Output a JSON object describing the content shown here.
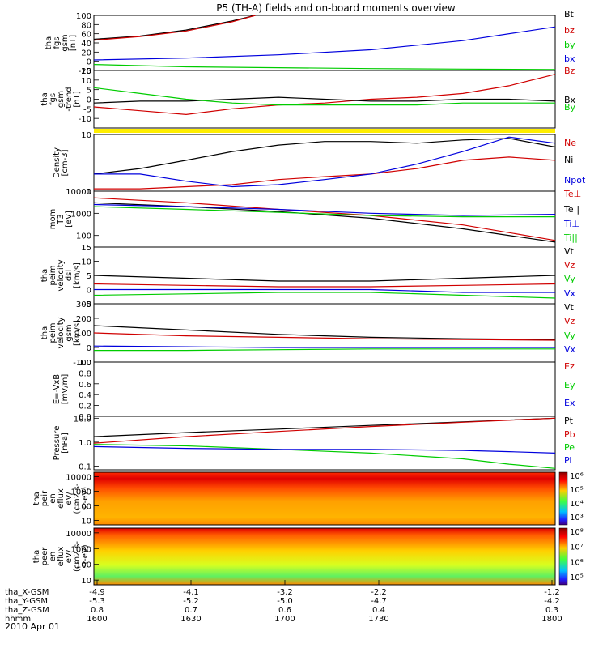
{
  "title": "P5 (TH-A) fields and on-board moments overview",
  "date_label": "2010 Apr 01",
  "colors": {
    "black": "#000000",
    "red": "#d00000",
    "green": "#00cc00",
    "blue": "#0000dd",
    "yellow": "#ffee00"
  },
  "chart_data": [
    {
      "type": "line",
      "panel": "fgs-gsm",
      "ylabel": [
        "tha",
        "fgs",
        "gsm",
        "[nT]"
      ],
      "ylim": [
        -20,
        100
      ],
      "y_ticks": [
        "100",
        "80",
        "60",
        "40",
        "20",
        "0",
        "-20"
      ],
      "legend": [
        "Bt",
        "bz",
        "by",
        "bx"
      ],
      "series": [
        {
          "name": "Bt",
          "color": "black",
          "x": [
            0,
            0.1,
            0.2,
            0.3,
            0.35
          ],
          "y": [
            48,
            55,
            68,
            88,
            101
          ]
        },
        {
          "name": "bz",
          "color": "red",
          "x": [
            0,
            0.1,
            0.2,
            0.3,
            0.35
          ],
          "y": [
            46,
            54,
            66,
            86,
            100
          ]
        },
        {
          "name": "by",
          "color": "green",
          "x": [
            0,
            0.2,
            0.4,
            0.6,
            0.8,
            1.0
          ],
          "y": [
            -7,
            -12,
            -14,
            -16,
            -17,
            -18
          ]
        },
        {
          "name": "bx",
          "color": "blue",
          "x": [
            0,
            0.2,
            0.4,
            0.6,
            0.8,
            1.0
          ],
          "y": [
            3,
            7,
            14,
            25,
            45,
            75
          ]
        }
      ]
    },
    {
      "type": "line",
      "panel": "fgs-dtrend",
      "ylabel": [
        "tha",
        "fgs",
        "gsm",
        "-trend",
        "[nT]"
      ],
      "ylim": [
        -15,
        15
      ],
      "y_ticks": [
        "15",
        "10",
        "5",
        "0",
        "-5",
        "-10"
      ],
      "legend": [
        "Bz",
        "Bx",
        "By"
      ],
      "series": [
        {
          "name": "Bz",
          "color": "red",
          "x": [
            0,
            0.1,
            0.2,
            0.3,
            0.4,
            0.5,
            0.6,
            0.7,
            0.8,
            0.9,
            1.0
          ],
          "y": [
            -4,
            -6,
            -8,
            -5,
            -3,
            -2,
            0,
            1,
            3,
            7,
            13
          ]
        },
        {
          "name": "Bx",
          "color": "black",
          "x": [
            0,
            0.1,
            0.2,
            0.3,
            0.4,
            0.5,
            0.6,
            0.7,
            0.8,
            0.9,
            1.0
          ],
          "y": [
            -2,
            -1,
            -1,
            0,
            1,
            0,
            -1,
            -1,
            0,
            0,
            -1
          ]
        },
        {
          "name": "By",
          "color": "green",
          "x": [
            0,
            0.1,
            0.2,
            0.3,
            0.4,
            0.5,
            0.6,
            0.7,
            0.8,
            0.9,
            1.0
          ],
          "y": [
            6,
            3,
            0,
            -2,
            -3,
            -3,
            -3,
            -3,
            -2,
            -2,
            -2
          ]
        }
      ]
    },
    {
      "type": "line",
      "panel": "density",
      "ylabel": [
        "Density",
        "[cm-3]"
      ],
      "scale": "log",
      "ylim": [
        1,
        10
      ],
      "y_ticks": [
        "10",
        "1"
      ],
      "legend": [
        "Ne",
        "Ni",
        "Npot"
      ],
      "series": [
        {
          "name": "Ne",
          "color": "red",
          "x": [
            0,
            0.1,
            0.2,
            0.3,
            0.4,
            0.5,
            0.6,
            0.7,
            0.8,
            0.9,
            1.0
          ],
          "y": [
            1.1,
            1.1,
            1.2,
            1.3,
            1.6,
            1.8,
            2.0,
            2.5,
            3.5,
            4.0,
            3.5
          ]
        },
        {
          "name": "Ni",
          "color": "black",
          "x": [
            0,
            0.1,
            0.2,
            0.3,
            0.4,
            0.5,
            0.6,
            0.7,
            0.8,
            0.9,
            1.0
          ],
          "y": [
            2.0,
            2.5,
            3.5,
            5.0,
            6.5,
            7.5,
            7.5,
            7.0,
            8.0,
            8.5,
            6.0
          ]
        },
        {
          "name": "Npot",
          "color": "blue",
          "x": [
            0,
            0.1,
            0.2,
            0.3,
            0.4,
            0.5,
            0.6,
            0.7,
            0.8,
            0.9,
            1.0
          ],
          "y": [
            2.0,
            2.0,
            1.5,
            1.2,
            1.3,
            1.6,
            2.0,
            3.0,
            5.0,
            9.0,
            7.0
          ]
        }
      ]
    },
    {
      "type": "line",
      "panel": "temperature",
      "ylabel": [
        "mom",
        "T3",
        "[eV]"
      ],
      "scale": "log",
      "ylim": [
        30,
        10000
      ],
      "y_ticks": [
        "10000",
        "1000",
        "100"
      ],
      "legend": [
        "Te⊥",
        "Te||",
        "Ti⊥",
        "Ti||"
      ],
      "series": [
        {
          "name": "Te⊥",
          "color": "red",
          "x": [
            0,
            0.2,
            0.4,
            0.6,
            0.8,
            1.0
          ],
          "y": [
            5000,
            3000,
            1500,
            800,
            300,
            60
          ]
        },
        {
          "name": "Te||",
          "color": "black",
          "x": [
            0,
            0.2,
            0.4,
            0.6,
            0.8,
            1.0
          ],
          "y": [
            3000,
            2000,
            1200,
            600,
            200,
            50
          ]
        },
        {
          "name": "Ti⊥",
          "color": "blue",
          "x": [
            0,
            0.2,
            0.4,
            0.6,
            0.8,
            1.0
          ],
          "y": [
            2500,
            2000,
            1500,
            1000,
            800,
            900
          ]
        },
        {
          "name": "Ti||",
          "color": "green",
          "x": [
            0,
            0.2,
            0.4,
            0.6,
            0.8,
            1.0
          ],
          "y": [
            2000,
            1500,
            1100,
            800,
            700,
            700
          ]
        }
      ]
    },
    {
      "type": "line",
      "panel": "peim-velocity-dsl",
      "ylabel": [
        "tha",
        "peim",
        "velocity",
        "dsl",
        "[km/s]"
      ],
      "ylim": [
        -5,
        15
      ],
      "y_ticks": [
        "15",
        "10",
        "5",
        "0",
        "-5"
      ],
      "legend": [
        "Vt",
        "Vz",
        "Vy",
        "Vx"
      ],
      "series": [
        {
          "name": "Vt",
          "color": "black",
          "x": [
            0,
            0.2,
            0.4,
            0.6,
            0.8,
            1.0
          ],
          "y": [
            5,
            4,
            3,
            3,
            4,
            5
          ]
        },
        {
          "name": "Vz",
          "color": "red",
          "x": [
            0,
            0.2,
            0.4,
            0.6,
            0.8,
            1.0
          ],
          "y": [
            2,
            1.5,
            1,
            1,
            1.5,
            2
          ]
        },
        {
          "name": "Vy",
          "color": "green",
          "x": [
            0,
            0.2,
            0.4,
            0.6,
            0.8,
            1.0
          ],
          "y": [
            -2,
            -1.5,
            -1,
            -1,
            -2,
            -3
          ]
        },
        {
          "name": "Vx",
          "color": "blue",
          "x": [
            0,
            0.2,
            0.4,
            0.6,
            0.8,
            1.0
          ],
          "y": [
            0,
            0,
            0,
            0,
            -1,
            -1
          ]
        }
      ]
    },
    {
      "type": "line",
      "panel": "peim-velocity-gsm",
      "ylabel": [
        "tha",
        "peim",
        "velocity",
        "gsm",
        "[km/s]"
      ],
      "ylim": [
        -100,
        300
      ],
      "y_ticks": [
        "300",
        "200",
        "100",
        "0",
        "-100"
      ],
      "legend": [
        "Vt",
        "Vz",
        "Vy",
        "Vx"
      ],
      "series": [
        {
          "name": "Vt",
          "color": "black",
          "x": [
            0,
            0.2,
            0.4,
            0.6,
            0.8,
            1.0
          ],
          "y": [
            150,
            120,
            90,
            70,
            60,
            55
          ]
        },
        {
          "name": "Vz",
          "color": "red",
          "x": [
            0,
            0.2,
            0.4,
            0.6,
            0.8,
            1.0
          ],
          "y": [
            100,
            80,
            70,
            60,
            55,
            50
          ]
        },
        {
          "name": "Vy",
          "color": "green",
          "x": [
            0,
            0.2,
            0.4,
            0.6,
            0.8,
            1.0
          ],
          "y": [
            -20,
            -20,
            -15,
            -10,
            -10,
            -10
          ]
        },
        {
          "name": "Vx",
          "color": "blue",
          "x": [
            0,
            0.2,
            0.4,
            0.6,
            0.8,
            1.0
          ],
          "y": [
            10,
            5,
            0,
            0,
            0,
            0
          ]
        }
      ]
    },
    {
      "type": "line",
      "panel": "efield",
      "ylabel": [
        "E=-VxB",
        "[mV/m]"
      ],
      "ylim": [
        0,
        1
      ],
      "y_ticks": [
        "1.0",
        "0.8",
        "0.6",
        "0.4",
        "0.2",
        "0.0"
      ],
      "legend": [
        "Ez",
        "Ey",
        "Ex"
      ],
      "series": []
    },
    {
      "type": "line",
      "panel": "pressure",
      "ylabel": [
        "Pressure",
        "[nPa]"
      ],
      "scale": "log",
      "ylim": [
        0.07,
        12
      ],
      "y_ticks": [
        "10.0",
        "1.0",
        "0.1"
      ],
      "legend": [
        "Pt",
        "Pb",
        "Pe",
        "Pi"
      ],
      "series": [
        {
          "name": "Pt",
          "color": "black",
          "x": [
            0,
            0.2,
            0.4,
            0.6,
            0.8,
            1.0
          ],
          "y": [
            1.7,
            2.5,
            3.5,
            5,
            7,
            10
          ]
        },
        {
          "name": "Pb",
          "color": "red",
          "x": [
            0,
            0.2,
            0.4,
            0.6,
            0.8,
            1.0
          ],
          "y": [
            0.9,
            1.7,
            2.8,
            4.5,
            6.8,
            10
          ]
        },
        {
          "name": "Pe",
          "color": "green",
          "x": [
            0,
            0.2,
            0.4,
            0.6,
            0.8,
            0.9,
            1.0
          ],
          "y": [
            0.8,
            0.7,
            0.5,
            0.35,
            0.2,
            0.12,
            0.08
          ]
        },
        {
          "name": "Pi",
          "color": "blue",
          "x": [
            0,
            0.2,
            0.4,
            0.6,
            0.8,
            0.9,
            1.0
          ],
          "y": [
            0.65,
            0.55,
            0.5,
            0.5,
            0.45,
            0.4,
            0.35
          ]
        }
      ]
    },
    {
      "type": "heatmap",
      "panel": "peir-eflux",
      "ylabel": [
        "tha",
        "peir",
        "en",
        "eflux",
        "eV/",
        "(cm2-s-",
        "sr-eV)"
      ],
      "scale": "log",
      "ylim": [
        5,
        20000
      ],
      "y_ticks": [
        "10000",
        "1000",
        "100",
        "10"
      ],
      "colorbar_ticks": [
        "10⁶",
        "10⁵",
        "10⁴",
        "10³"
      ]
    },
    {
      "type": "heatmap",
      "panel": "peer-eflux",
      "ylabel": [
        "tha",
        "peer",
        "en",
        "eflux",
        "eV/",
        "(cm2-s-",
        "sr-eV)"
      ],
      "scale": "log",
      "ylim": [
        5,
        20000
      ],
      "y_ticks": [
        "10000",
        "1000",
        "100",
        "10"
      ],
      "colorbar_ticks": [
        "10⁸",
        "10⁷",
        "10⁶",
        "10⁵"
      ]
    }
  ],
  "x_axis_rows": [
    {
      "label": "tha_X-GSM",
      "values": [
        "-4.9",
        "-4.1",
        "-3.2",
        "-2.2",
        "-1.2"
      ]
    },
    {
      "label": "tha_Y-GSM",
      "values": [
        "-5.3",
        "-5.2",
        "-5.0",
        "-4.7",
        "-4.2"
      ]
    },
    {
      "label": "tha_Z-GSM",
      "values": [
        "0.8",
        "0.7",
        "0.6",
        "0.4",
        "0.3"
      ]
    },
    {
      "label": "hhmm",
      "values": [
        "1600",
        "1630",
        "1700",
        "1730",
        "1800"
      ]
    }
  ]
}
